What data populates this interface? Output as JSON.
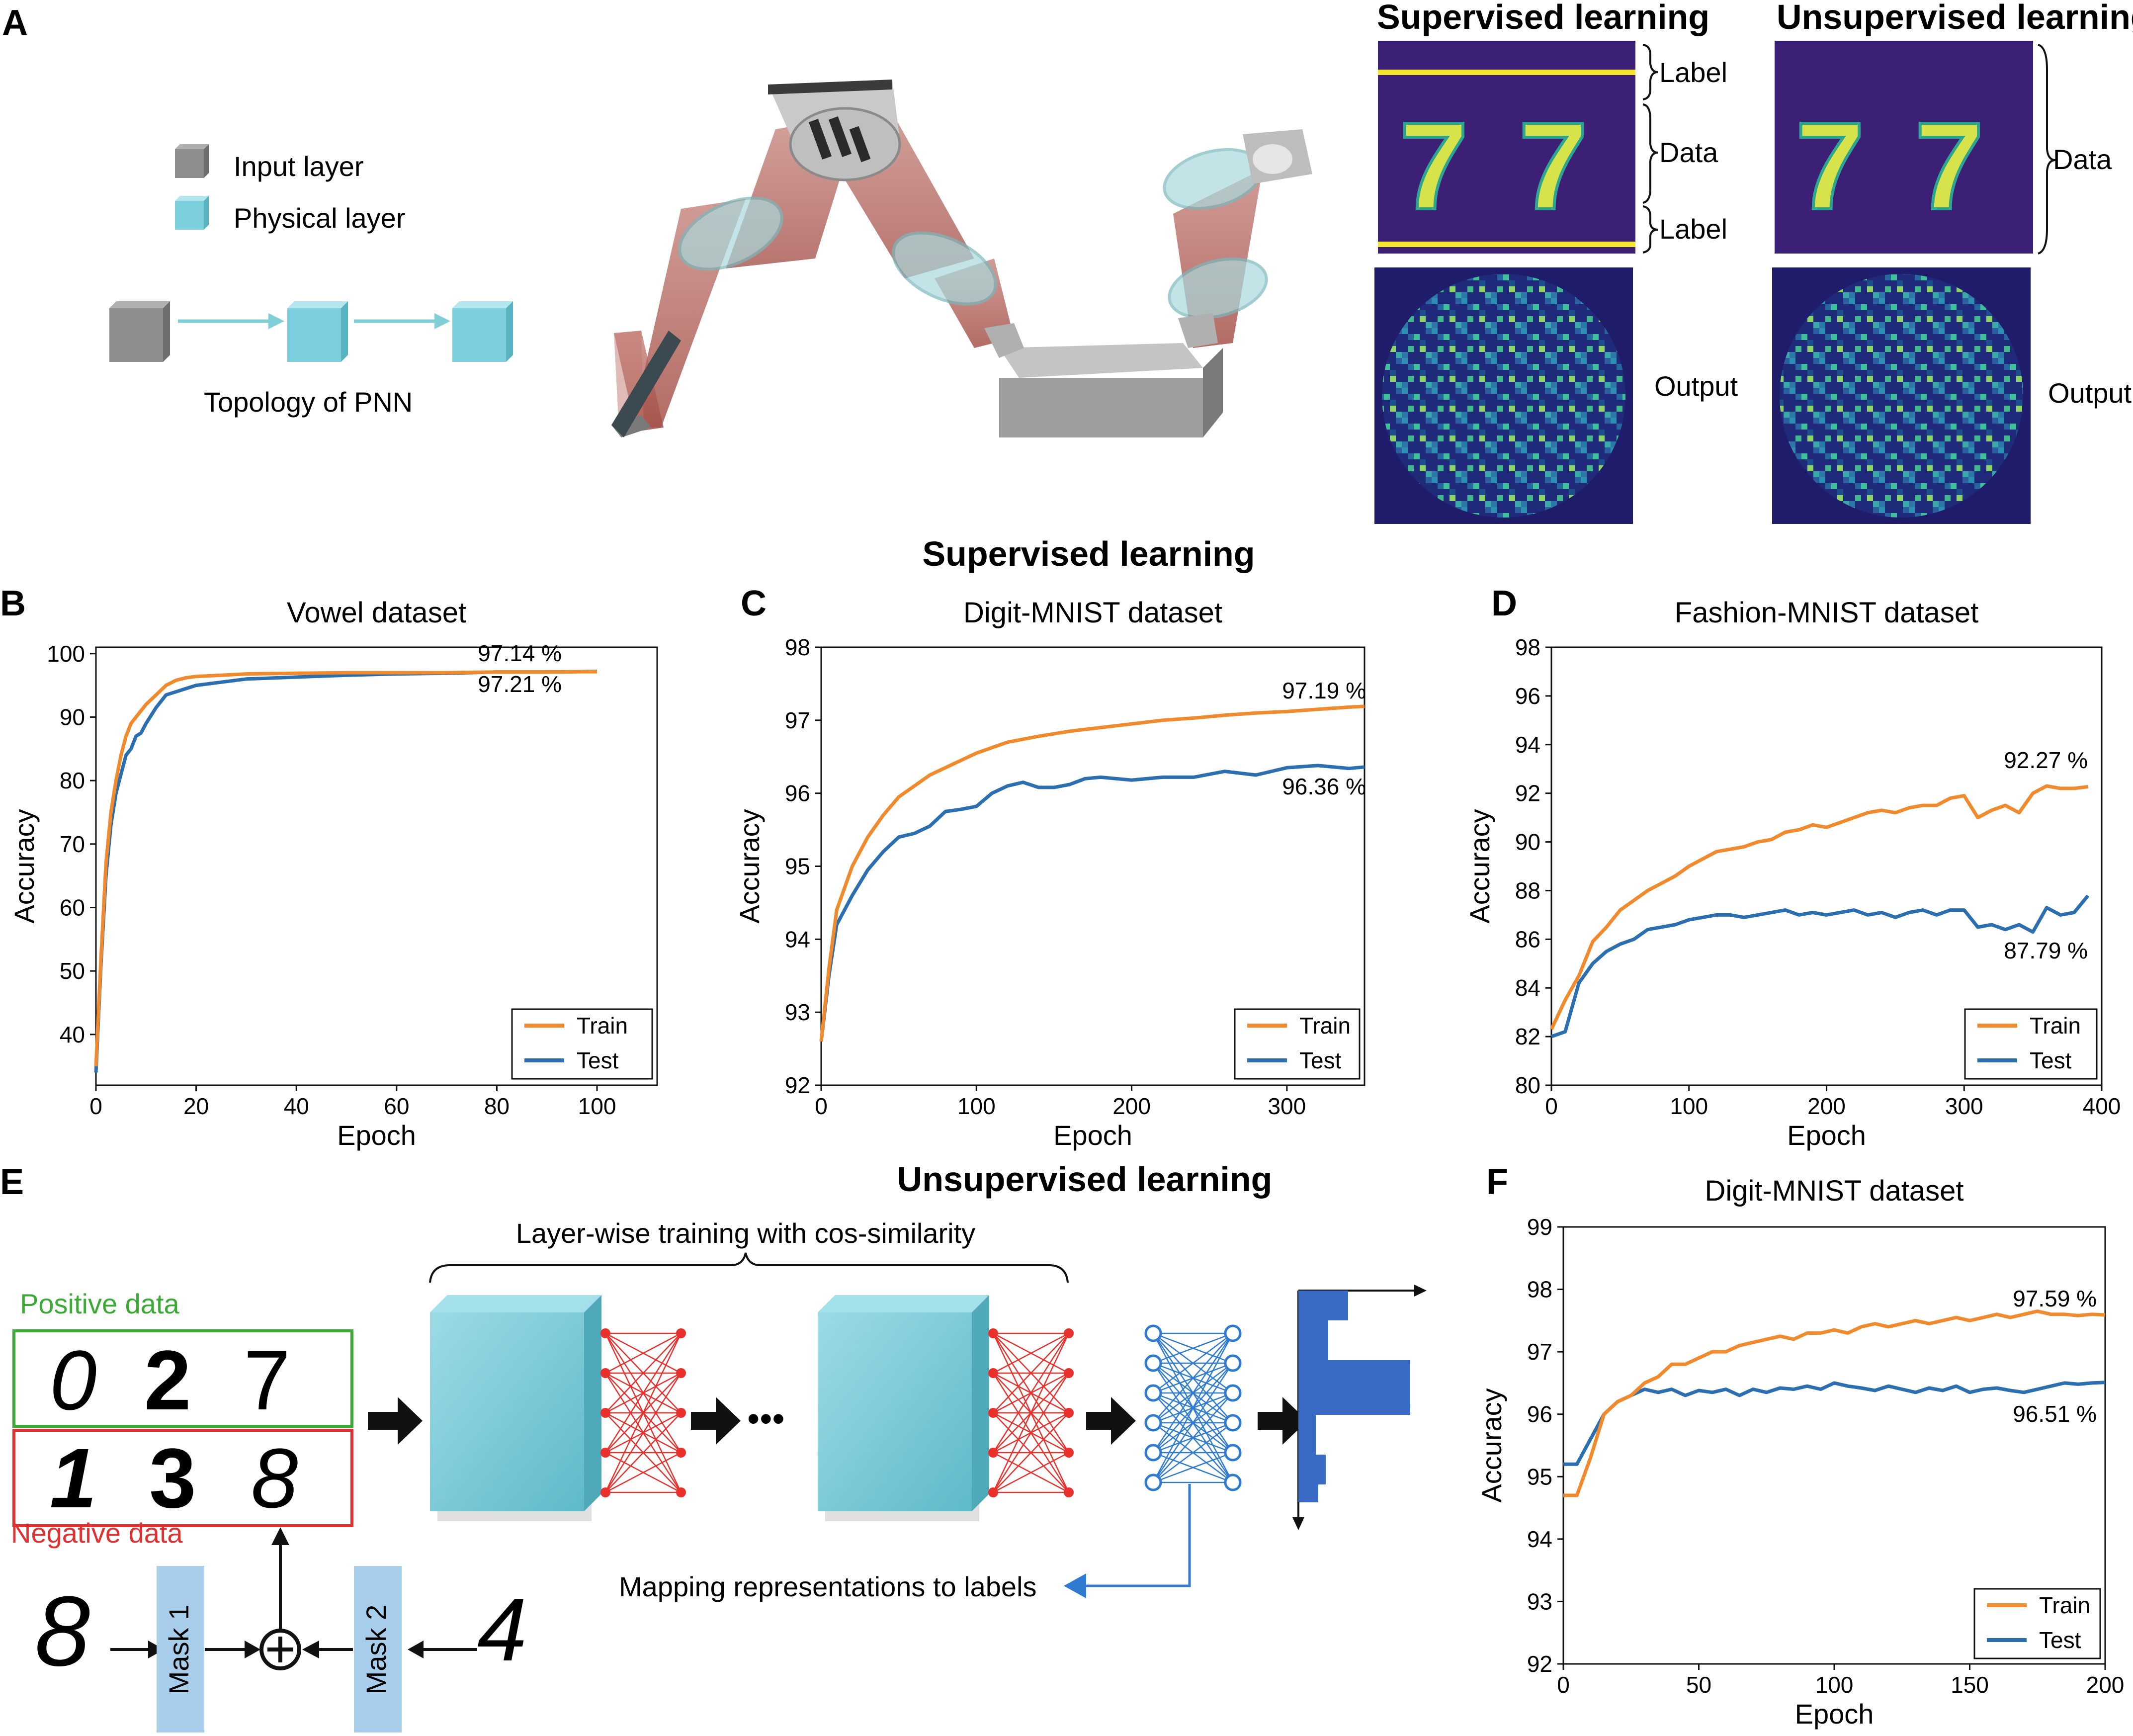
{
  "panels": {
    "A": "A",
    "B": "B",
    "C": "C",
    "D": "D",
    "E": "E",
    "F": "F"
  },
  "panel_a": {
    "legend_input": "Input layer",
    "legend_physical": "Physical layer",
    "topology_label": "Topology of PNN",
    "supervised_title": "Supervised learning",
    "unsupervised_title": "Unsupervised learning",
    "label_top": "Label",
    "data_label": "Data",
    "label_bottom": "Label",
    "data_label_right": "Data",
    "output_left": "Output",
    "output_right": "Output",
    "digits": "7",
    "colors": {
      "input_cube": "#8e8e8e",
      "physical_cube": "#7ccfdc",
      "arrow": "#7fcfd6",
      "mnist_bg": "#3c2076",
      "mnist_digit": "#d7e34a",
      "label_line": "#f5e530",
      "speckle_bg": "#1f1d6b"
    }
  },
  "section_supervised": "Supervised learning",
  "section_unsupervised": "Unsupervised learning",
  "panel_e": {
    "brace_label": "Layer-wise training with cos-similarity",
    "positive_label": "Positive data",
    "negative_label": "Negative data",
    "positive_digits": [
      "0",
      "2",
      "7"
    ],
    "negative_digits": [
      "1",
      "3",
      "8"
    ],
    "mask1": "Mask 1",
    "mask2": "Mask 2",
    "input_digit_left": "8",
    "input_digit_right": "4",
    "mapping_label": "Mapping representations to labels",
    "ellipsis": "•••",
    "colors": {
      "positive": "#3aaa35",
      "negative": "#e03030",
      "red_net": "#e8302c",
      "blue_net": "#2e7bd1",
      "mask": "#a8cdea",
      "bar": "#3a6bc4",
      "cube": "#7ccfdc"
    }
  },
  "chart_data": [
    {
      "id": "B",
      "type": "line",
      "title": "Vowel dataset",
      "xlabel": "Epoch",
      "ylabel": "Accuracy",
      "xlim": [
        0,
        112
      ],
      "ylim": [
        32,
        101
      ],
      "xticks": [
        0,
        20,
        40,
        60,
        80,
        100
      ],
      "yticks": [
        40,
        50,
        60,
        70,
        80,
        90,
        100
      ],
      "legend_position": "lower right",
      "grid": false,
      "series": [
        {
          "name": "Train",
          "color": "#f08a2c",
          "x": [
            0,
            1,
            2,
            3,
            4,
            5,
            6,
            7,
            8,
            9,
            10,
            12,
            14,
            16,
            18,
            20,
            25,
            30,
            40,
            50,
            60,
            70,
            80,
            90,
            95,
            100
          ],
          "y": [
            35,
            52,
            67,
            75,
            80,
            84,
            87,
            89,
            90,
            91,
            92,
            93.5,
            95,
            95.8,
            96.2,
            96.4,
            96.6,
            96.8,
            96.9,
            97,
            97,
            97,
            97.1,
            97.1,
            97.14,
            97.14
          ]
        },
        {
          "name": "Test",
          "color": "#2b6fb0",
          "x": [
            0,
            1,
            2,
            3,
            4,
            5,
            6,
            7,
            8,
            9,
            10,
            12,
            14,
            16,
            18,
            20,
            25,
            30,
            40,
            50,
            60,
            70,
            80,
            90,
            95,
            100
          ],
          "y": [
            34,
            51,
            65,
            73,
            78,
            81,
            84,
            85,
            87,
            87.5,
            89,
            91.5,
            93.5,
            94,
            94.5,
            95,
            95.5,
            96,
            96.3,
            96.6,
            96.8,
            96.9,
            97.1,
            97.1,
            97.15,
            97.21
          ]
        }
      ],
      "annotations": [
        "97.14 %",
        "97.21 %"
      ]
    },
    {
      "id": "C",
      "type": "line",
      "title": "Digit-MNIST dataset",
      "xlabel": "Epoch",
      "ylabel": "Accuracy",
      "xlim": [
        0,
        350
      ],
      "ylim": [
        92,
        98
      ],
      "xticks": [
        0,
        100,
        200,
        300
      ],
      "yticks": [
        92,
        93,
        94,
        95,
        96,
        97,
        98
      ],
      "legend_position": "lower right",
      "grid": false,
      "series": [
        {
          "name": "Train",
          "color": "#f08a2c",
          "x": [
            0,
            5,
            10,
            20,
            30,
            40,
            50,
            60,
            70,
            80,
            90,
            100,
            120,
            140,
            160,
            180,
            200,
            220,
            240,
            260,
            280,
            300,
            320,
            340,
            350
          ],
          "y": [
            92.6,
            93.6,
            94.4,
            95.0,
            95.4,
            95.7,
            95.95,
            96.1,
            96.25,
            96.35,
            96.45,
            96.55,
            96.7,
            96.78,
            96.85,
            96.9,
            96.95,
            97.0,
            97.03,
            97.07,
            97.1,
            97.12,
            97.15,
            97.18,
            97.19
          ]
        },
        {
          "name": "Test",
          "color": "#2b6fb0",
          "x": [
            0,
            5,
            10,
            20,
            30,
            40,
            50,
            60,
            70,
            80,
            90,
            100,
            110,
            120,
            130,
            140,
            150,
            160,
            170,
            180,
            200,
            220,
            240,
            260,
            280,
            300,
            320,
            340,
            350
          ],
          "y": [
            92.6,
            93.5,
            94.2,
            94.6,
            94.95,
            95.2,
            95.4,
            95.45,
            95.55,
            95.75,
            95.78,
            95.82,
            96.0,
            96.1,
            96.15,
            96.08,
            96.08,
            96.12,
            96.2,
            96.22,
            96.18,
            96.22,
            96.22,
            96.3,
            96.25,
            96.35,
            96.38,
            96.34,
            96.36
          ]
        }
      ],
      "annotations": [
        "97.19 %",
        "96.36 %"
      ]
    },
    {
      "id": "D",
      "type": "line",
      "title": "Fashion-MNIST dataset",
      "xlabel": "Epoch",
      "ylabel": "Accuracy",
      "xlim": [
        0,
        400
      ],
      "ylim": [
        80,
        98
      ],
      "xticks": [
        0,
        100,
        200,
        300,
        400
      ],
      "yticks": [
        80,
        82,
        84,
        86,
        88,
        90,
        92,
        94,
        96,
        98
      ],
      "legend_position": "lower right",
      "grid": false,
      "series": [
        {
          "name": "Train",
          "color": "#f08a2c",
          "x": [
            0,
            10,
            20,
            30,
            40,
            50,
            60,
            70,
            80,
            90,
            100,
            110,
            120,
            130,
            140,
            150,
            160,
            170,
            180,
            190,
            200,
            210,
            220,
            230,
            240,
            250,
            260,
            270,
            280,
            290,
            300,
            310,
            320,
            330,
            340,
            350,
            360,
            370,
            380,
            390
          ],
          "y": [
            82.3,
            83.5,
            84.5,
            85.9,
            86.5,
            87.2,
            87.6,
            88.0,
            88.3,
            88.6,
            89.0,
            89.3,
            89.6,
            89.7,
            89.8,
            90.0,
            90.1,
            90.4,
            90.5,
            90.7,
            90.6,
            90.8,
            91.0,
            91.2,
            91.3,
            91.2,
            91.4,
            91.5,
            91.5,
            91.8,
            91.9,
            91.0,
            91.3,
            91.5,
            91.2,
            92.0,
            92.3,
            92.2,
            92.2,
            92.27
          ]
        },
        {
          "name": "Test",
          "color": "#2b6fb0",
          "x": [
            0,
            10,
            20,
            30,
            40,
            50,
            60,
            70,
            80,
            90,
            100,
            110,
            120,
            130,
            140,
            150,
            160,
            170,
            180,
            190,
            200,
            210,
            220,
            230,
            240,
            250,
            260,
            270,
            280,
            290,
            300,
            310,
            320,
            330,
            340,
            350,
            360,
            370,
            380,
            390
          ],
          "y": [
            82.0,
            82.2,
            84.2,
            85.0,
            85.5,
            85.8,
            86.0,
            86.4,
            86.5,
            86.6,
            86.8,
            86.9,
            87.0,
            87.0,
            86.9,
            87.0,
            87.1,
            87.2,
            87.0,
            87.1,
            87.0,
            87.1,
            87.2,
            87.0,
            87.1,
            86.9,
            87.1,
            87.2,
            87.0,
            87.2,
            87.2,
            86.5,
            86.6,
            86.4,
            86.6,
            86.3,
            87.3,
            87.0,
            87.1,
            87.79
          ]
        }
      ],
      "annotations": [
        "92.27 %",
        "87.79 %"
      ]
    },
    {
      "id": "F",
      "type": "line",
      "title": "Digit-MNIST dataset",
      "xlabel": "Epoch",
      "ylabel": "Accuracy",
      "xlim": [
        0,
        200
      ],
      "ylim": [
        92,
        99
      ],
      "xticks": [
        0,
        50,
        100,
        150,
        200
      ],
      "yticks": [
        92,
        93,
        94,
        95,
        96,
        97,
        98,
        99
      ],
      "legend_position": "lower right",
      "grid": false,
      "series": [
        {
          "name": "Train",
          "color": "#f08a2c",
          "x": [
            0,
            5,
            10,
            15,
            20,
            25,
            30,
            35,
            40,
            45,
            50,
            55,
            60,
            65,
            70,
            75,
            80,
            85,
            90,
            95,
            100,
            105,
            110,
            115,
            120,
            125,
            130,
            135,
            140,
            145,
            150,
            155,
            160,
            165,
            170,
            175,
            180,
            185,
            190,
            195,
            200
          ],
          "y": [
            94.7,
            94.7,
            95.3,
            96.0,
            96.2,
            96.3,
            96.5,
            96.6,
            96.8,
            96.8,
            96.9,
            97.0,
            97.0,
            97.1,
            97.15,
            97.2,
            97.25,
            97.2,
            97.3,
            97.3,
            97.35,
            97.3,
            97.4,
            97.45,
            97.4,
            97.45,
            97.5,
            97.45,
            97.5,
            97.55,
            97.5,
            97.55,
            97.6,
            97.55,
            97.6,
            97.65,
            97.6,
            97.6,
            97.58,
            97.6,
            97.59
          ]
        },
        {
          "name": "Test",
          "color": "#2b6fb0",
          "x": [
            0,
            5,
            10,
            15,
            20,
            25,
            30,
            35,
            40,
            45,
            50,
            55,
            60,
            65,
            70,
            75,
            80,
            85,
            90,
            95,
            100,
            105,
            110,
            115,
            120,
            125,
            130,
            135,
            140,
            145,
            150,
            155,
            160,
            165,
            170,
            175,
            180,
            185,
            190,
            195,
            200
          ],
          "y": [
            95.2,
            95.2,
            95.6,
            96.0,
            96.2,
            96.3,
            96.4,
            96.35,
            96.4,
            96.3,
            96.38,
            96.35,
            96.4,
            96.3,
            96.4,
            96.35,
            96.42,
            96.4,
            96.45,
            96.4,
            96.5,
            96.45,
            96.42,
            96.38,
            96.45,
            96.4,
            96.35,
            96.42,
            96.38,
            96.45,
            96.35,
            96.4,
            96.42,
            96.38,
            96.35,
            96.4,
            96.45,
            96.5,
            96.48,
            96.5,
            96.51
          ]
        }
      ],
      "annotations": [
        "97.59 %",
        "96.51 %"
      ]
    }
  ]
}
